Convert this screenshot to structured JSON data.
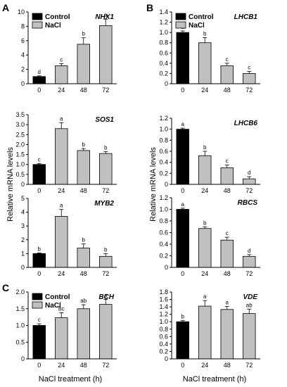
{
  "figure": {
    "ylabel": "Relative mRNA levels",
    "xlabel": "NaCl treatment (h)",
    "panel_letters": [
      "A",
      "B",
      "C"
    ]
  },
  "legend": {
    "control_label": "Control",
    "nacl_label": "NaCl",
    "control_color": "#000000",
    "nacl_color": "#c0c0c0"
  },
  "chart_data": [
    {
      "type": "bar",
      "title": "NHX1",
      "categories": [
        "0",
        "24",
        "48",
        "72"
      ],
      "values": [
        1.0,
        2.5,
        5.5,
        8.1
      ],
      "errors": [
        0.1,
        0.3,
        0.9,
        0.9
      ],
      "significance": [
        "d",
        "c",
        "b",
        "a"
      ],
      "ylim": [
        0,
        10
      ],
      "yticks": [
        "0",
        "2",
        "4",
        "6",
        "8",
        "10"
      ],
      "legend": "top-left"
    },
    {
      "type": "bar",
      "title": "LHCB1",
      "categories": [
        "0",
        "24",
        "48",
        "72"
      ],
      "values": [
        1.0,
        0.8,
        0.35,
        0.2
      ],
      "errors": [
        0.03,
        0.1,
        0.05,
        0.04
      ],
      "significance": [
        "a",
        "b",
        "c",
        "c"
      ],
      "ylim": [
        0,
        1.4
      ],
      "yticks": [
        "0",
        "0.2",
        "0.4",
        "0.6",
        "0.8",
        "1.0",
        "1.2",
        "1.4"
      ],
      "legend": "top-left"
    },
    {
      "type": "bar",
      "title": "SOS1",
      "categories": [
        "0",
        "24",
        "48",
        "72"
      ],
      "values": [
        1.0,
        2.8,
        1.7,
        1.55
      ],
      "errors": [
        0.05,
        0.3,
        0.1,
        0.1
      ],
      "significance": [
        "c",
        "a",
        "b",
        "b"
      ],
      "ylim": [
        0,
        3.5
      ],
      "yticks": [
        "0",
        "0.5",
        "1.0",
        "1.5",
        "2.0",
        "2.5",
        "3.0",
        "3.5"
      ]
    },
    {
      "type": "bar",
      "title": "LHCB6",
      "categories": [
        "0",
        "24",
        "48",
        "72"
      ],
      "values": [
        1.0,
        0.52,
        0.3,
        0.1
      ],
      "errors": [
        0.02,
        0.08,
        0.05,
        0.04
      ],
      "significance": [
        "a",
        "b",
        "c",
        "d"
      ],
      "ylim": [
        0,
        1.2
      ],
      "yticks": [
        "0",
        "0.2",
        "0.4",
        "0.6",
        "0.8",
        "1.0",
        "1.2"
      ]
    },
    {
      "type": "bar",
      "title": "MYB2",
      "categories": [
        "0",
        "24",
        "48",
        "72"
      ],
      "values": [
        1.0,
        3.7,
        1.4,
        0.8
      ],
      "errors": [
        0.05,
        0.5,
        0.3,
        0.2
      ],
      "significance": [
        "b",
        "a",
        "b",
        "b"
      ],
      "ylim": [
        0,
        5
      ],
      "yticks": [
        "0",
        "1",
        "2",
        "3",
        "4",
        "5"
      ]
    },
    {
      "type": "bar",
      "title": "RBCS",
      "categories": [
        "0",
        "24",
        "48",
        "72"
      ],
      "values": [
        1.0,
        0.67,
        0.47,
        0.19
      ],
      "errors": [
        0.02,
        0.03,
        0.05,
        0.03
      ],
      "significance": [
        "a",
        "b",
        "c",
        "d"
      ],
      "ylim": [
        0,
        1.2
      ],
      "yticks": [
        "0",
        "0.2",
        "0.4",
        "0.6",
        "0.8",
        "1.0",
        "1.2"
      ]
    },
    {
      "type": "bar",
      "title": "BCH",
      "categories": [
        "0",
        "24",
        "48",
        "72"
      ],
      "values": [
        1.0,
        1.23,
        1.5,
        1.63
      ],
      "errors": [
        0.05,
        0.15,
        0.12,
        0.15
      ],
      "significance": [
        "c",
        "bc",
        "ab",
        "a"
      ],
      "ylim": [
        0,
        2.0
      ],
      "yticks": [
        "0",
        "0.5",
        "1.0",
        "1.5",
        "2.0"
      ],
      "legend": "top-left"
    },
    {
      "type": "bar",
      "title": "VDE",
      "categories": [
        "0",
        "24",
        "48",
        "72"
      ],
      "values": [
        1.0,
        1.42,
        1.33,
        1.22
      ],
      "errors": [
        0.03,
        0.15,
        0.08,
        0.12
      ],
      "significance": [
        "b",
        "a",
        "a",
        "ab"
      ],
      "ylim": [
        0,
        1.8
      ],
      "yticks": [
        "0",
        "0.2",
        "0.4",
        "0.6",
        "0.8",
        "1.0",
        "1.2",
        "1.4",
        "1.6",
        "1.8"
      ]
    }
  ]
}
